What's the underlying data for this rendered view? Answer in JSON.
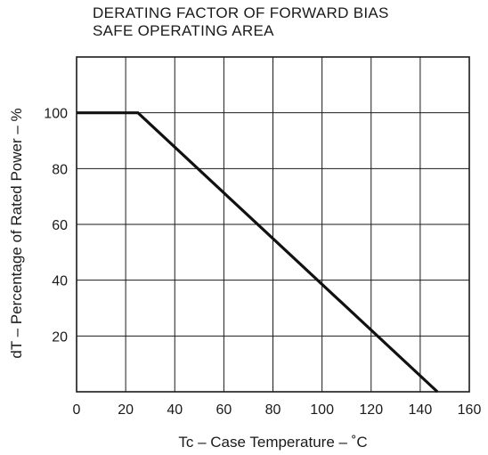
{
  "chart_data": {
    "type": "line",
    "title": [
      "DERATING FACTOR OF FORWARD BIAS",
      "SAFE OPERATING AREA"
    ],
    "xlabel": "Tc – Case Temperature – ˚C",
    "ylabel": "dT – Percentage of Rated Power – %",
    "xlim": [
      0,
      160
    ],
    "ylim": [
      0,
      120
    ],
    "xticks": [
      0,
      20,
      40,
      60,
      80,
      100,
      120,
      140,
      160
    ],
    "yticks": [
      20,
      40,
      60,
      80,
      100
    ],
    "grid": true,
    "series": [
      {
        "x": [
          0,
          25,
          147
        ],
        "y": [
          100,
          100,
          0
        ]
      }
    ]
  }
}
